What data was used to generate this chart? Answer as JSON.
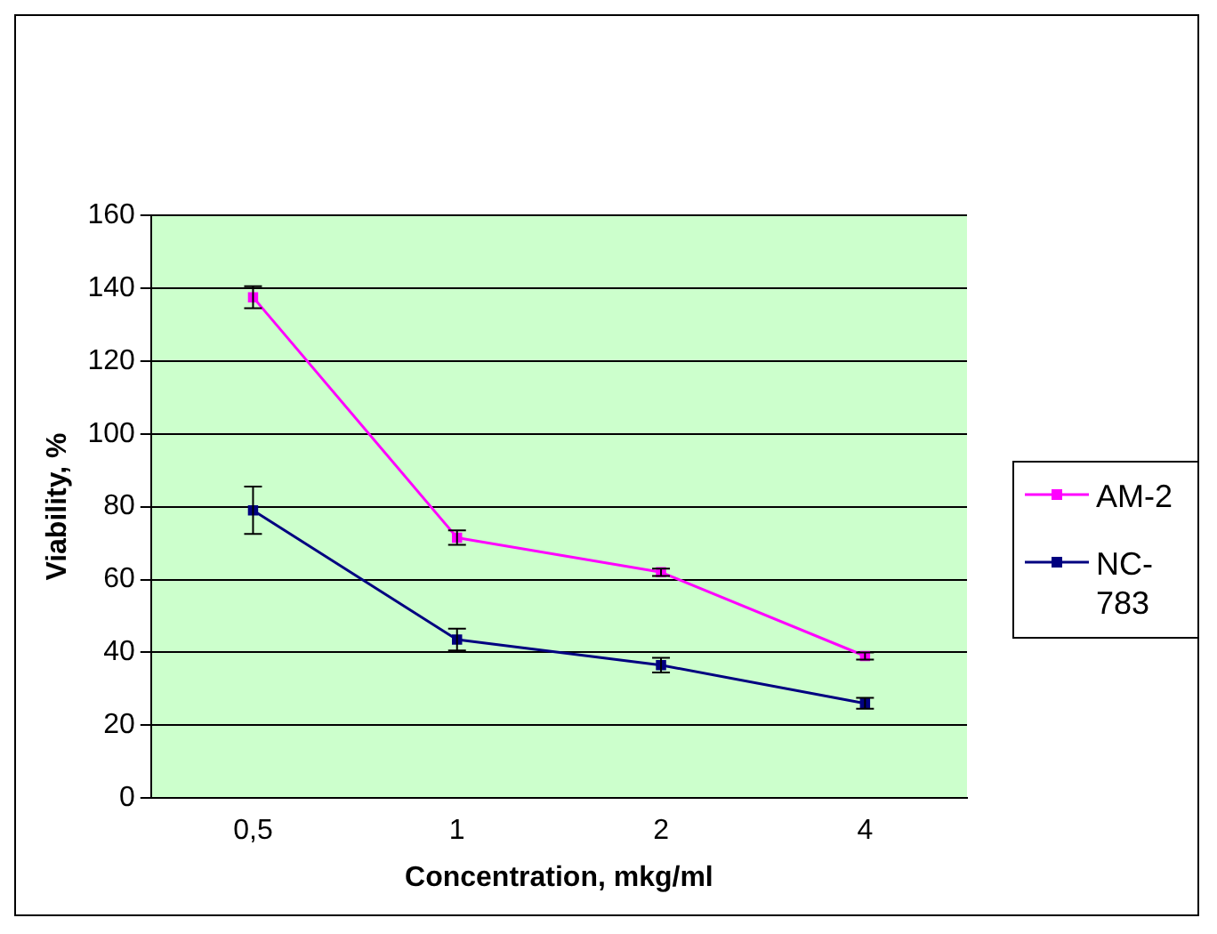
{
  "chart_data": {
    "type": "line",
    "xlabel": "Concentration, mkg/ml",
    "ylabel": "Viability, %",
    "categories": [
      "0,5",
      "1",
      "2",
      "4"
    ],
    "series": [
      {
        "name": "AM-2",
        "color": "#ff00ff",
        "values": [
          137.5,
          71.5,
          62,
          39
        ],
        "errors": [
          3,
          2,
          1,
          1
        ]
      },
      {
        "name": "NC-783",
        "color": "#000080",
        "values": [
          79,
          43.5,
          36.5,
          26
        ],
        "errors": [
          6.5,
          3,
          2,
          1.5
        ]
      }
    ],
    "ylim": [
      0,
      160
    ],
    "yticks": [
      0,
      20,
      40,
      60,
      80,
      100,
      120,
      140,
      160
    ],
    "grid": "y",
    "legend": "right",
    "marker": "square",
    "line_style": "solid"
  }
}
